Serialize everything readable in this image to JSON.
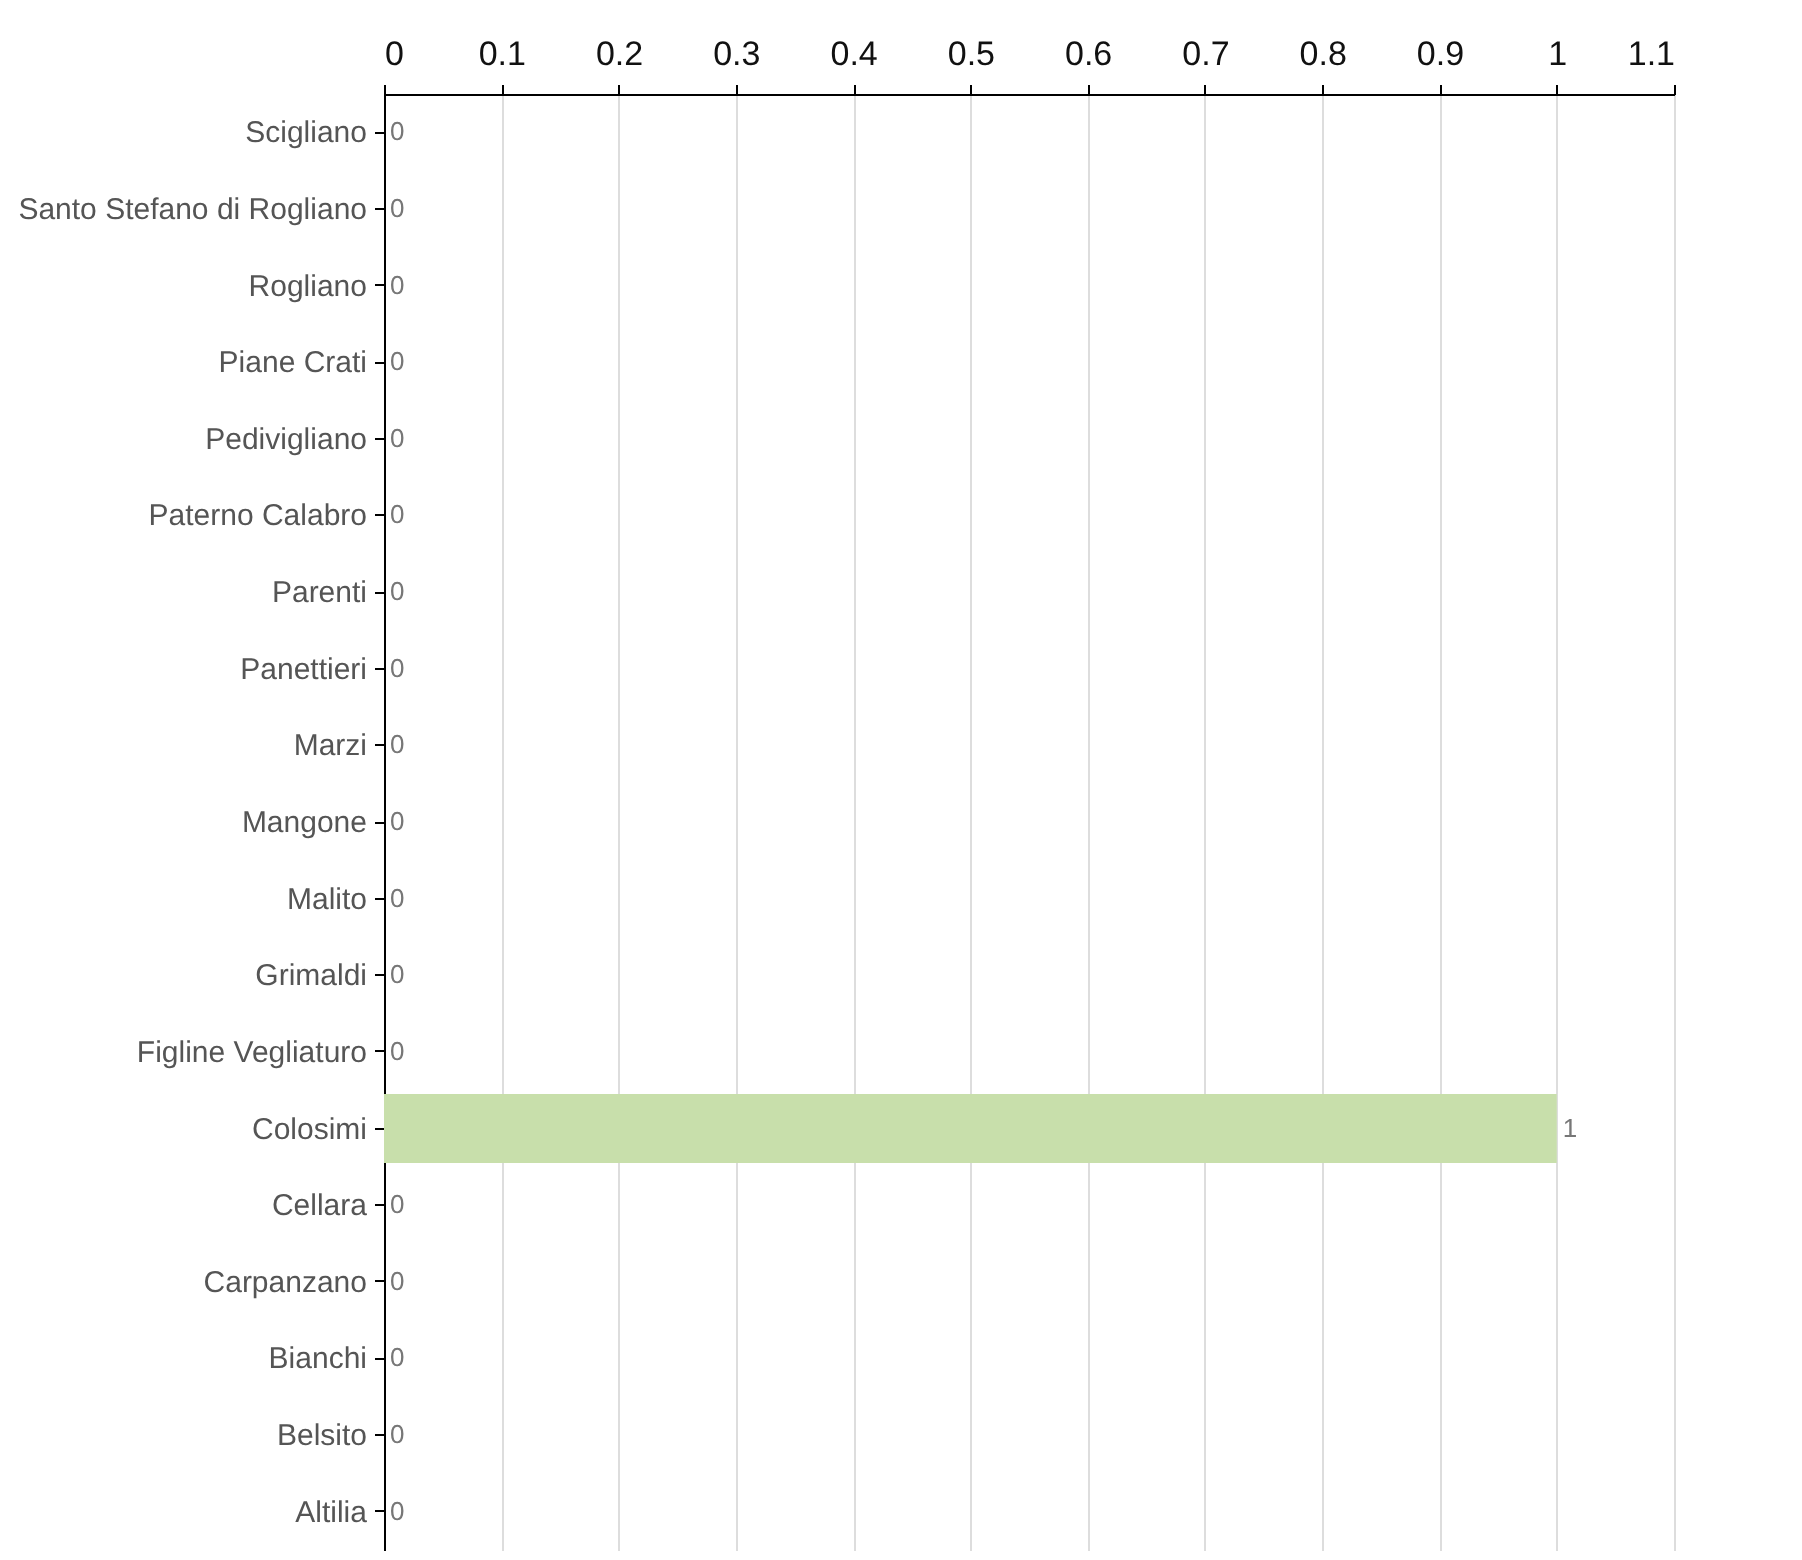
{
  "chart_data": {
    "type": "bar",
    "orientation": "horizontal",
    "categories": [
      "Scigliano",
      "Santo Stefano di Rogliano",
      "Rogliano",
      "Piane Crati",
      "Pedivigliano",
      "Paterno Calabro",
      "Parenti",
      "Panettieri",
      "Marzi",
      "Mangone",
      "Malito",
      "Grimaldi",
      "Figline Vegliaturo",
      "Colosimi",
      "Cellara",
      "Carpanzano",
      "Bianchi",
      "Belsito",
      "Altilia"
    ],
    "values": [
      0,
      0,
      0,
      0,
      0,
      0,
      0,
      0,
      0,
      0,
      0,
      0,
      0,
      1,
      0,
      0,
      0,
      0,
      0
    ],
    "color": "#c8dfab",
    "xlim": [
      0,
      1.1
    ],
    "xticks": [
      0,
      0.1,
      0.2,
      0.3,
      0.4,
      0.5,
      0.6,
      0.7,
      0.8,
      0.9,
      1,
      1.1
    ],
    "grid": "x",
    "data_labels": true
  }
}
